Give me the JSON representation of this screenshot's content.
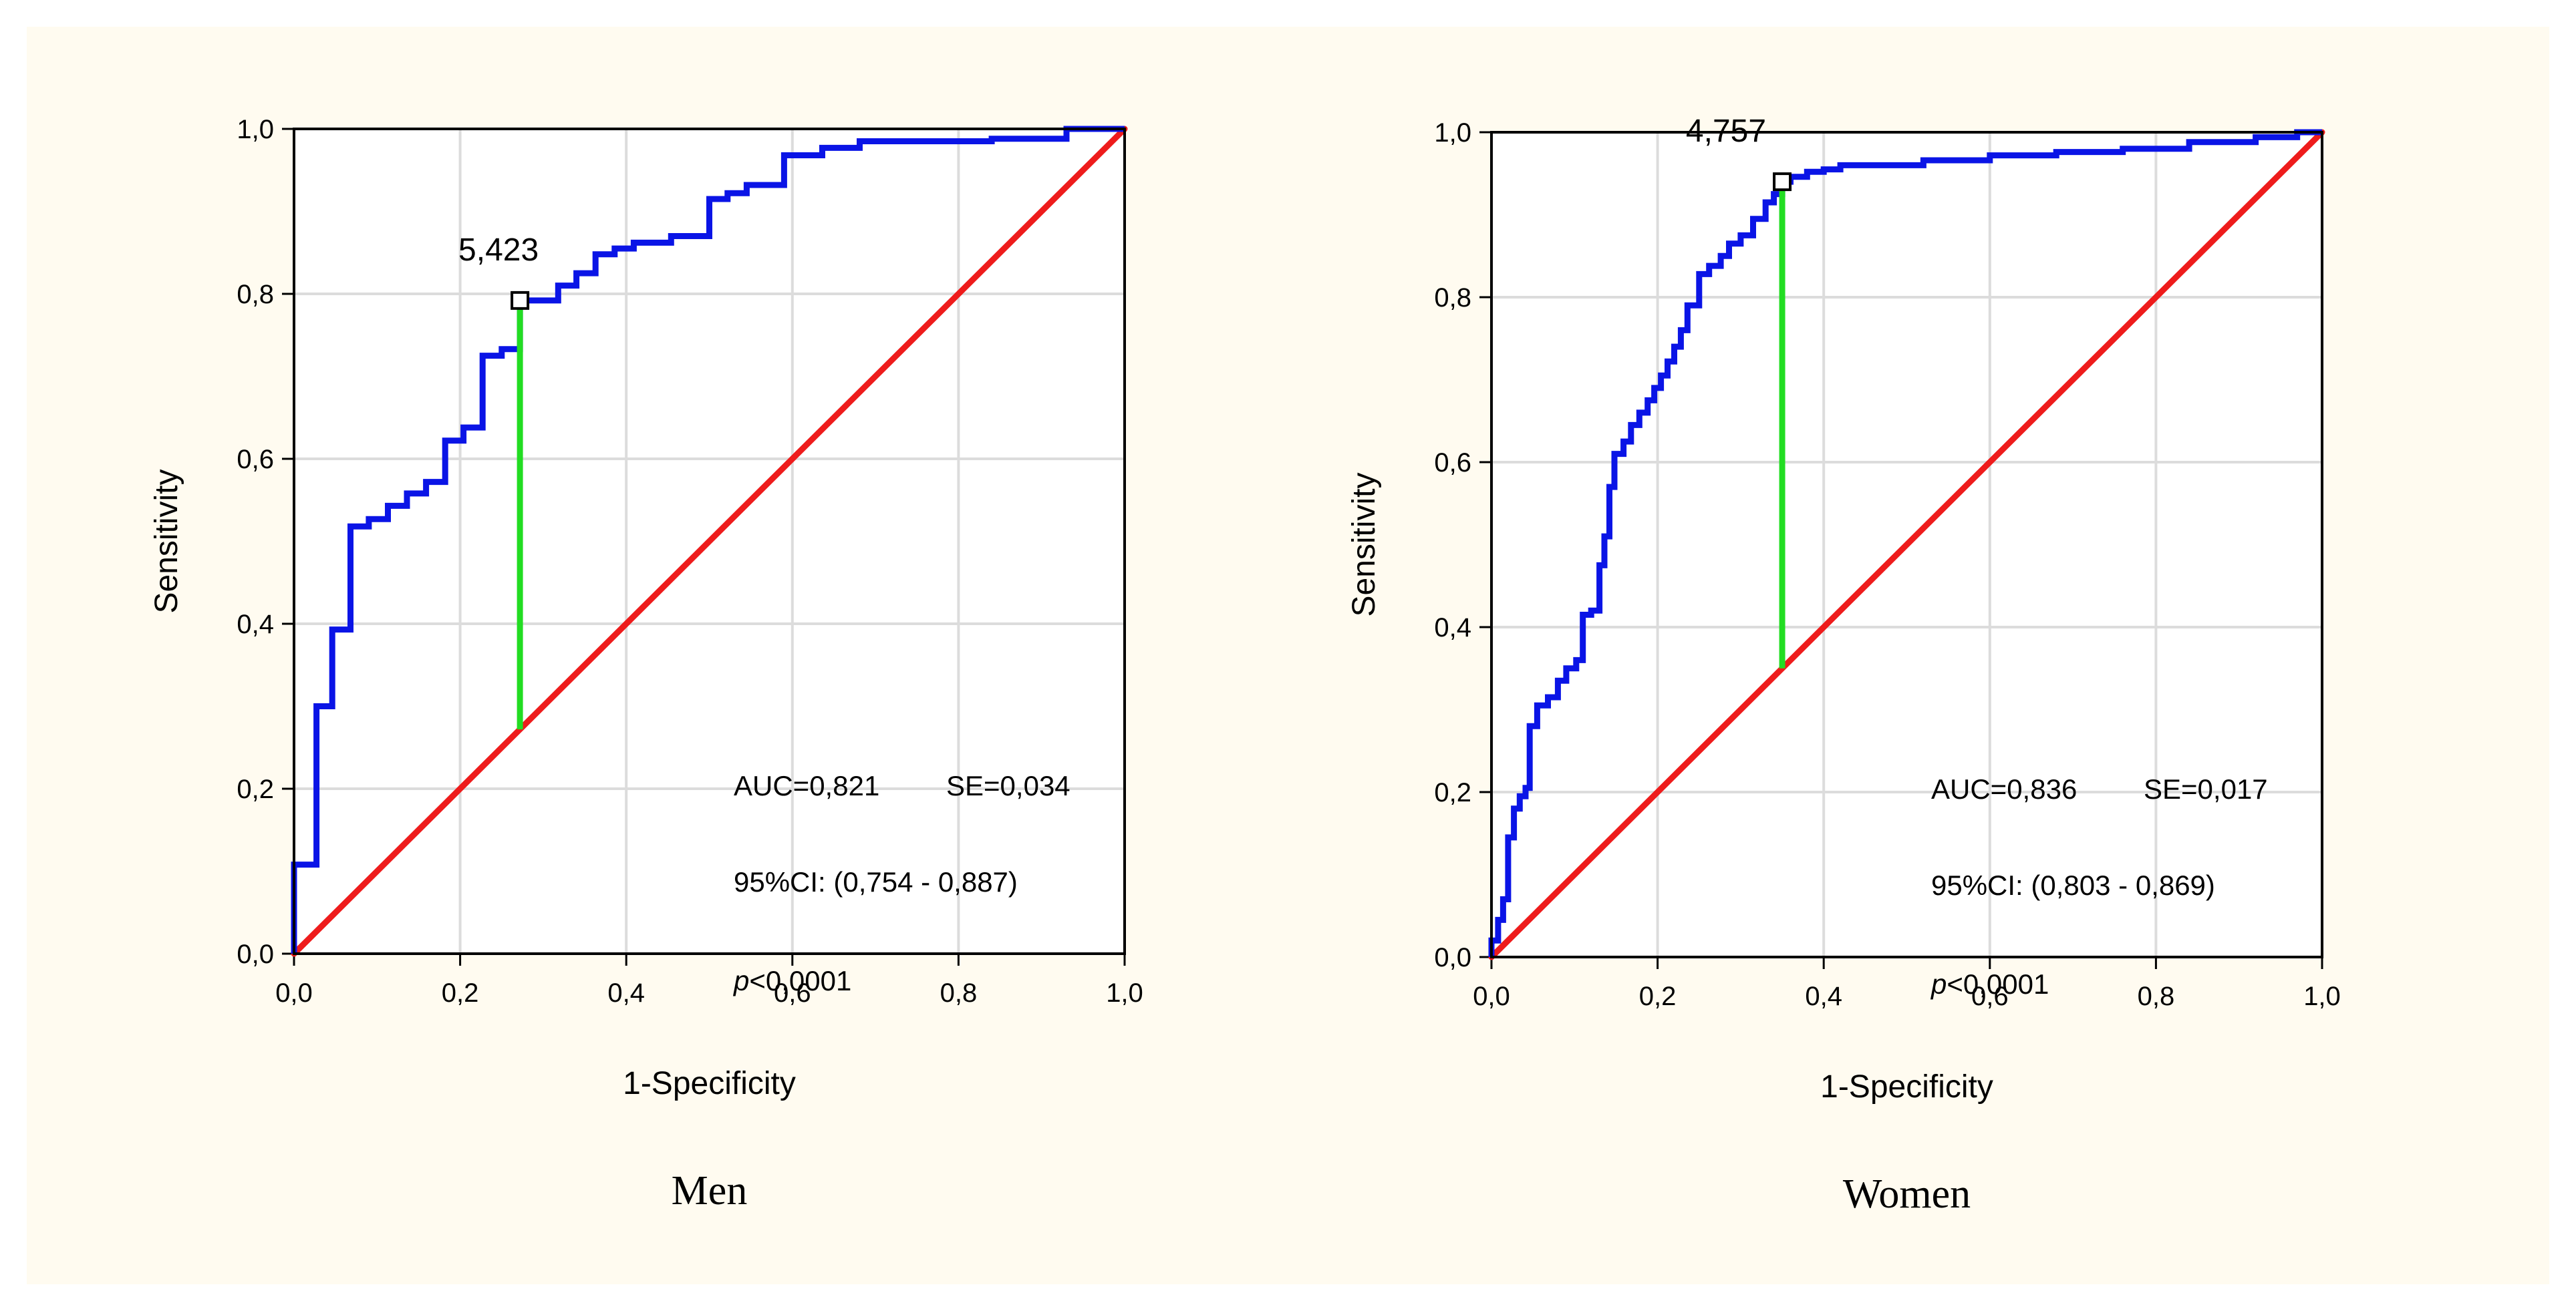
{
  "colors": {
    "background": "#fffbf0",
    "plot_background": "#ffffff",
    "grid": "#dcdcdc",
    "roc": "#0a14e6",
    "reference": "#ee1c1c",
    "cutoff_line": "#22dd22"
  },
  "chart_data": [
    {
      "type": "line",
      "caption": "Men",
      "xlabel": "1-Specificity",
      "ylabel": "Sensitivity",
      "xlim": [
        0,
        1
      ],
      "ylim": [
        0,
        1
      ],
      "xticks": [
        "0,0",
        "0,2",
        "0,4",
        "0,6",
        "0,8",
        "1,0"
      ],
      "yticks": [
        "0,0",
        "0,2",
        "0,4",
        "0,6",
        "0,8",
        "1,0"
      ],
      "grid": true,
      "stats": {
        "auc": "AUC=0,821",
        "se": "SE=0,034",
        "ci": "95%CI: (0,754 - 0,887)",
        "p_symbol": "p",
        "p_value": "<0,0001"
      },
      "cutoff": {
        "label": "5,423",
        "x": 0.272,
        "y": 0.792
      },
      "reference_line": [
        [
          0,
          0
        ],
        [
          1,
          1
        ]
      ],
      "roc": [
        [
          0,
          0
        ],
        [
          0,
          0.108
        ],
        [
          0.027,
          0.108
        ],
        [
          0.027,
          0.3
        ],
        [
          0.046,
          0.3
        ],
        [
          0.046,
          0.393
        ],
        [
          0.068,
          0.393
        ],
        [
          0.068,
          0.518
        ],
        [
          0.09,
          0.518
        ],
        [
          0.09,
          0.527
        ],
        [
          0.113,
          0.527
        ],
        [
          0.113,
          0.543
        ],
        [
          0.136,
          0.543
        ],
        [
          0.136,
          0.558
        ],
        [
          0.159,
          0.558
        ],
        [
          0.159,
          0.572
        ],
        [
          0.182,
          0.572
        ],
        [
          0.182,
          0.622
        ],
        [
          0.204,
          0.622
        ],
        [
          0.204,
          0.638
        ],
        [
          0.227,
          0.638
        ],
        [
          0.227,
          0.725
        ],
        [
          0.25,
          0.725
        ],
        [
          0.25,
          0.733
        ],
        [
          0.272,
          0.733
        ],
        [
          0.272,
          0.792
        ],
        [
          0.318,
          0.792
        ],
        [
          0.318,
          0.81
        ],
        [
          0.34,
          0.81
        ],
        [
          0.34,
          0.825
        ],
        [
          0.363,
          0.825
        ],
        [
          0.363,
          0.848
        ],
        [
          0.386,
          0.848
        ],
        [
          0.386,
          0.855
        ],
        [
          0.409,
          0.855
        ],
        [
          0.409,
          0.862
        ],
        [
          0.454,
          0.862
        ],
        [
          0.454,
          0.87
        ],
        [
          0.5,
          0.87
        ],
        [
          0.5,
          0.915
        ],
        [
          0.522,
          0.915
        ],
        [
          0.522,
          0.922
        ],
        [
          0.545,
          0.922
        ],
        [
          0.545,
          0.932
        ],
        [
          0.59,
          0.932
        ],
        [
          0.59,
          0.968
        ],
        [
          0.636,
          0.968
        ],
        [
          0.636,
          0.977
        ],
        [
          0.681,
          0.977
        ],
        [
          0.681,
          0.985
        ],
        [
          0.84,
          0.985
        ],
        [
          0.84,
          0.988
        ],
        [
          0.93,
          0.988
        ],
        [
          0.93,
          1.0
        ],
        [
          1.0,
          1.0
        ]
      ]
    },
    {
      "type": "line",
      "caption": "Women",
      "xlabel": "1-Specificity",
      "ylabel": "Sensitivity",
      "xlim": [
        0,
        1
      ],
      "ylim": [
        0,
        1
      ],
      "xticks": [
        "0,0",
        "0,2",
        "0,4",
        "0,6",
        "0,8",
        "1,0"
      ],
      "yticks": [
        "0,0",
        "0,2",
        "0,4",
        "0,6",
        "0,8",
        "1,0"
      ],
      "grid": true,
      "stats": {
        "auc": "AUC=0,836",
        "se": "SE=0,017",
        "ci": "95%CI: (0,803 - 0,869)",
        "p_symbol": "p",
        "p_value": "<0,0001"
      },
      "cutoff": {
        "label": "4,757",
        "x": 0.35,
        "y": 0.94
      },
      "reference_line": [
        [
          0,
          0
        ],
        [
          1,
          1
        ]
      ],
      "roc": [
        [
          0,
          0
        ],
        [
          0,
          0.02
        ],
        [
          0.008,
          0.02
        ],
        [
          0.008,
          0.045
        ],
        [
          0.014,
          0.045
        ],
        [
          0.014,
          0.07
        ],
        [
          0.02,
          0.07
        ],
        [
          0.02,
          0.145
        ],
        [
          0.027,
          0.145
        ],
        [
          0.027,
          0.18
        ],
        [
          0.034,
          0.18
        ],
        [
          0.034,
          0.195
        ],
        [
          0.041,
          0.195
        ],
        [
          0.041,
          0.205
        ],
        [
          0.046,
          0.205
        ],
        [
          0.046,
          0.28
        ],
        [
          0.055,
          0.28
        ],
        [
          0.055,
          0.305
        ],
        [
          0.068,
          0.305
        ],
        [
          0.068,
          0.315
        ],
        [
          0.08,
          0.315
        ],
        [
          0.08,
          0.335
        ],
        [
          0.09,
          0.335
        ],
        [
          0.09,
          0.35
        ],
        [
          0.102,
          0.35
        ],
        [
          0.102,
          0.36
        ],
        [
          0.11,
          0.36
        ],
        [
          0.11,
          0.415
        ],
        [
          0.12,
          0.415
        ],
        [
          0.12,
          0.42
        ],
        [
          0.13,
          0.42
        ],
        [
          0.13,
          0.475
        ],
        [
          0.136,
          0.475
        ],
        [
          0.136,
          0.51
        ],
        [
          0.142,
          0.51
        ],
        [
          0.142,
          0.57
        ],
        [
          0.148,
          0.57
        ],
        [
          0.148,
          0.61
        ],
        [
          0.159,
          0.61
        ],
        [
          0.159,
          0.625
        ],
        [
          0.168,
          0.625
        ],
        [
          0.168,
          0.645
        ],
        [
          0.178,
          0.645
        ],
        [
          0.178,
          0.66
        ],
        [
          0.188,
          0.66
        ],
        [
          0.188,
          0.675
        ],
        [
          0.196,
          0.675
        ],
        [
          0.196,
          0.69
        ],
        [
          0.204,
          0.69
        ],
        [
          0.204,
          0.705
        ],
        [
          0.212,
          0.705
        ],
        [
          0.212,
          0.722
        ],
        [
          0.22,
          0.722
        ],
        [
          0.22,
          0.74
        ],
        [
          0.228,
          0.74
        ],
        [
          0.228,
          0.76
        ],
        [
          0.236,
          0.76
        ],
        [
          0.236,
          0.79
        ],
        [
          0.25,
          0.79
        ],
        [
          0.25,
          0.828
        ],
        [
          0.262,
          0.828
        ],
        [
          0.262,
          0.838
        ],
        [
          0.276,
          0.838
        ],
        [
          0.276,
          0.85
        ],
        [
          0.286,
          0.85
        ],
        [
          0.286,
          0.865
        ],
        [
          0.3,
          0.865
        ],
        [
          0.3,
          0.875
        ],
        [
          0.315,
          0.875
        ],
        [
          0.315,
          0.895
        ],
        [
          0.33,
          0.895
        ],
        [
          0.33,
          0.915
        ],
        [
          0.34,
          0.915
        ],
        [
          0.34,
          0.925
        ],
        [
          0.35,
          0.925
        ],
        [
          0.35,
          0.94
        ],
        [
          0.36,
          0.94
        ],
        [
          0.36,
          0.946
        ],
        [
          0.38,
          0.946
        ],
        [
          0.38,
          0.952
        ],
        [
          0.4,
          0.952
        ],
        [
          0.4,
          0.955
        ],
        [
          0.42,
          0.955
        ],
        [
          0.42,
          0.96
        ],
        [
          0.52,
          0.96
        ],
        [
          0.52,
          0.966
        ],
        [
          0.6,
          0.966
        ],
        [
          0.6,
          0.972
        ],
        [
          0.68,
          0.972
        ],
        [
          0.68,
          0.976
        ],
        [
          0.76,
          0.976
        ],
        [
          0.76,
          0.98
        ],
        [
          0.84,
          0.98
        ],
        [
          0.84,
          0.988
        ],
        [
          0.92,
          0.988
        ],
        [
          0.92,
          0.994
        ],
        [
          0.97,
          0.994
        ],
        [
          0.97,
          1.0
        ],
        [
          1.0,
          1.0
        ]
      ]
    }
  ]
}
